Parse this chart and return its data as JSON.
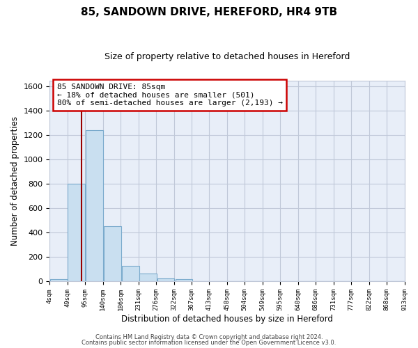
{
  "title": "85, SANDOWN DRIVE, HEREFORD, HR4 9TB",
  "subtitle": "Size of property relative to detached houses in Hereford",
  "xlabel": "Distribution of detached houses by size in Hereford",
  "ylabel": "Number of detached properties",
  "bar_left_edges": [
    4,
    49,
    95,
    140,
    186,
    231,
    276,
    322,
    367,
    413,
    458,
    504,
    549,
    595,
    640,
    686,
    731,
    777,
    822,
    868
  ],
  "bar_heights": [
    20,
    800,
    1240,
    455,
    130,
    65,
    25,
    20,
    0,
    0,
    0,
    0,
    0,
    0,
    0,
    0,
    0,
    0,
    0,
    0
  ],
  "bin_width": 45,
  "tick_labels": [
    "4sqm",
    "49sqm",
    "95sqm",
    "140sqm",
    "186sqm",
    "231sqm",
    "276sqm",
    "322sqm",
    "367sqm",
    "413sqm",
    "458sqm",
    "504sqm",
    "549sqm",
    "595sqm",
    "640sqm",
    "686sqm",
    "731sqm",
    "777sqm",
    "822sqm",
    "868sqm",
    "913sqm"
  ],
  "bar_color": "#c9dff0",
  "bar_edge_color": "#7aaacc",
  "vline_x": 85,
  "vline_color": "#990000",
  "ylim": [
    0,
    1650
  ],
  "yticks": [
    0,
    200,
    400,
    600,
    800,
    1000,
    1200,
    1400,
    1600
  ],
  "annotation_box_text": "85 SANDOWN DRIVE: 85sqm\n← 18% of detached houses are smaller (501)\n80% of semi-detached houses are larger (2,193) →",
  "footer1": "Contains HM Land Registry data © Crown copyright and database right 2024.",
  "footer2": "Contains public sector information licensed under the Open Government Licence v3.0.",
  "bg_color": "#ffffff",
  "plot_bg_color": "#e8eef8",
  "grid_color": "#c0c8d8"
}
